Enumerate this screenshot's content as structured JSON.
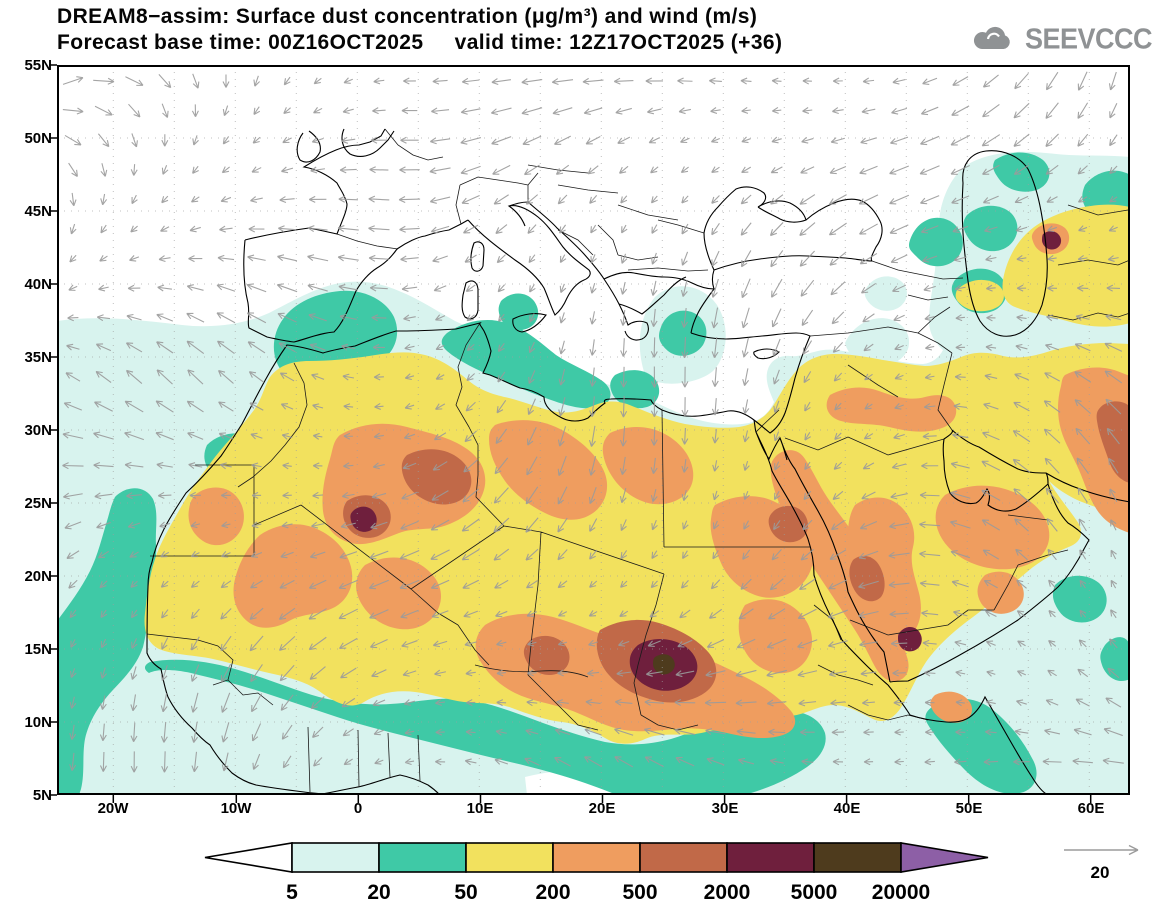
{
  "header": {
    "title_line1": "DREAM8−assim: Surface dust concentration (μg/m³) and wind (m/s)",
    "title_line2": "Forecast base time: 00Z16OCT2025     valid time: 12Z17OCT2025 (+36)",
    "logo_text": "SEEVCCC"
  },
  "axes": {
    "lat_labels": [
      "55N",
      "50N",
      "45N",
      "40N",
      "35N",
      "30N",
      "25N",
      "20N",
      "15N",
      "10N",
      "5N"
    ],
    "lon_labels": [
      "20W",
      "10W",
      "0",
      "10E",
      "20E",
      "30E",
      "40E",
      "50E",
      "60E"
    ]
  },
  "legend": {
    "values": [
      "5",
      "20",
      "50",
      "200",
      "500",
      "2000",
      "5000",
      "20000"
    ],
    "colors": {
      "below5": "#ffffff",
      "c5": "#d8f3ee",
      "c20": "#3fc9a6",
      "c50": "#f2e15e",
      "c200": "#ef9d5f",
      "c500": "#c16948",
      "c2000": "#6f1f3d",
      "c5000": "#4e3b1d",
      "c20000": "#8d5fa6"
    }
  },
  "wind": {
    "reference_label": "20",
    "arrow_color": "#9b9b9b"
  },
  "map_style": {
    "coast_color": "#000000",
    "border_color": "#1a1a1a",
    "grid_color": "#9e9e9e",
    "frame_color": "#000000",
    "logo_color": "#8f9294"
  },
  "chart_data": {
    "type": "heatmap",
    "title": "DREAM8−assim: Surface dust concentration (μg/m³) and wind (m/s)",
    "variable": "Surface dust concentration",
    "units": "μg/m³",
    "wind_units": "m/s",
    "forecast_base_time": "00Z16OCT2025",
    "valid_time": "12Z17OCT2025",
    "lead_hours": 36,
    "wind_reference_ms": 20,
    "extent": {
      "lon_labels": [
        "20W",
        "10W",
        "0",
        "10E",
        "20E",
        "30E",
        "40E",
        "50E",
        "60E"
      ],
      "lat_labels": [
        "5N",
        "10N",
        "15N",
        "20N",
        "25N",
        "30N",
        "35N",
        "40N",
        "45N",
        "50N",
        "55N"
      ]
    },
    "colorbar_levels": [
      5,
      20,
      50,
      200,
      500,
      2000,
      5000,
      20000
    ],
    "colorbar_colors": [
      "#ffffff",
      "#d8f3ee",
      "#3fc9a6",
      "#f2e15e",
      "#ef9d5f",
      "#c16948",
      "#6f1f3d",
      "#4e3b1d",
      "#8d5fa6"
    ],
    "legend_note": "9 color bins bounded by the 8 levels; arrow end-caps denote below-lowest (white) and above-highest (purple)",
    "features": [
      {
        "region": "Sahara belt from Mauritania to Sudan and most of North Africa",
        "level_ugm3": "50–500"
      },
      {
        "region": "Bodélé depression / Chad hotspot",
        "level_ugm3": "2000–20000"
      },
      {
        "region": "NW Algeria hotspot",
        "level_ugm3": "2000–5000"
      },
      {
        "region": "Central Sahara band (Niger–Chad–Sudan)",
        "level_ugm3": "500–2000"
      },
      {
        "region": "Red Sea and western Arabian Peninsula (Hejaz hotspot)",
        "level_ugm3": "200–5000"
      },
      {
        "region": "Arabian Peninsula interior, Iraq, Iran (E edge)",
        "level_ugm3": "50–2000"
      },
      {
        "region": "Central Asia spot near NE corner",
        "level_ugm3": "2000–5000"
      },
      {
        "region": "Sahel, W African coast, W Mediterranean, Aegean, Caucasus–Caspian fringes",
        "level_ugm3": "5–50"
      },
      {
        "region": "Europe, central/eastern Mediterranean, central Anatolia",
        "level_ugm3": "<5"
      }
    ]
  }
}
